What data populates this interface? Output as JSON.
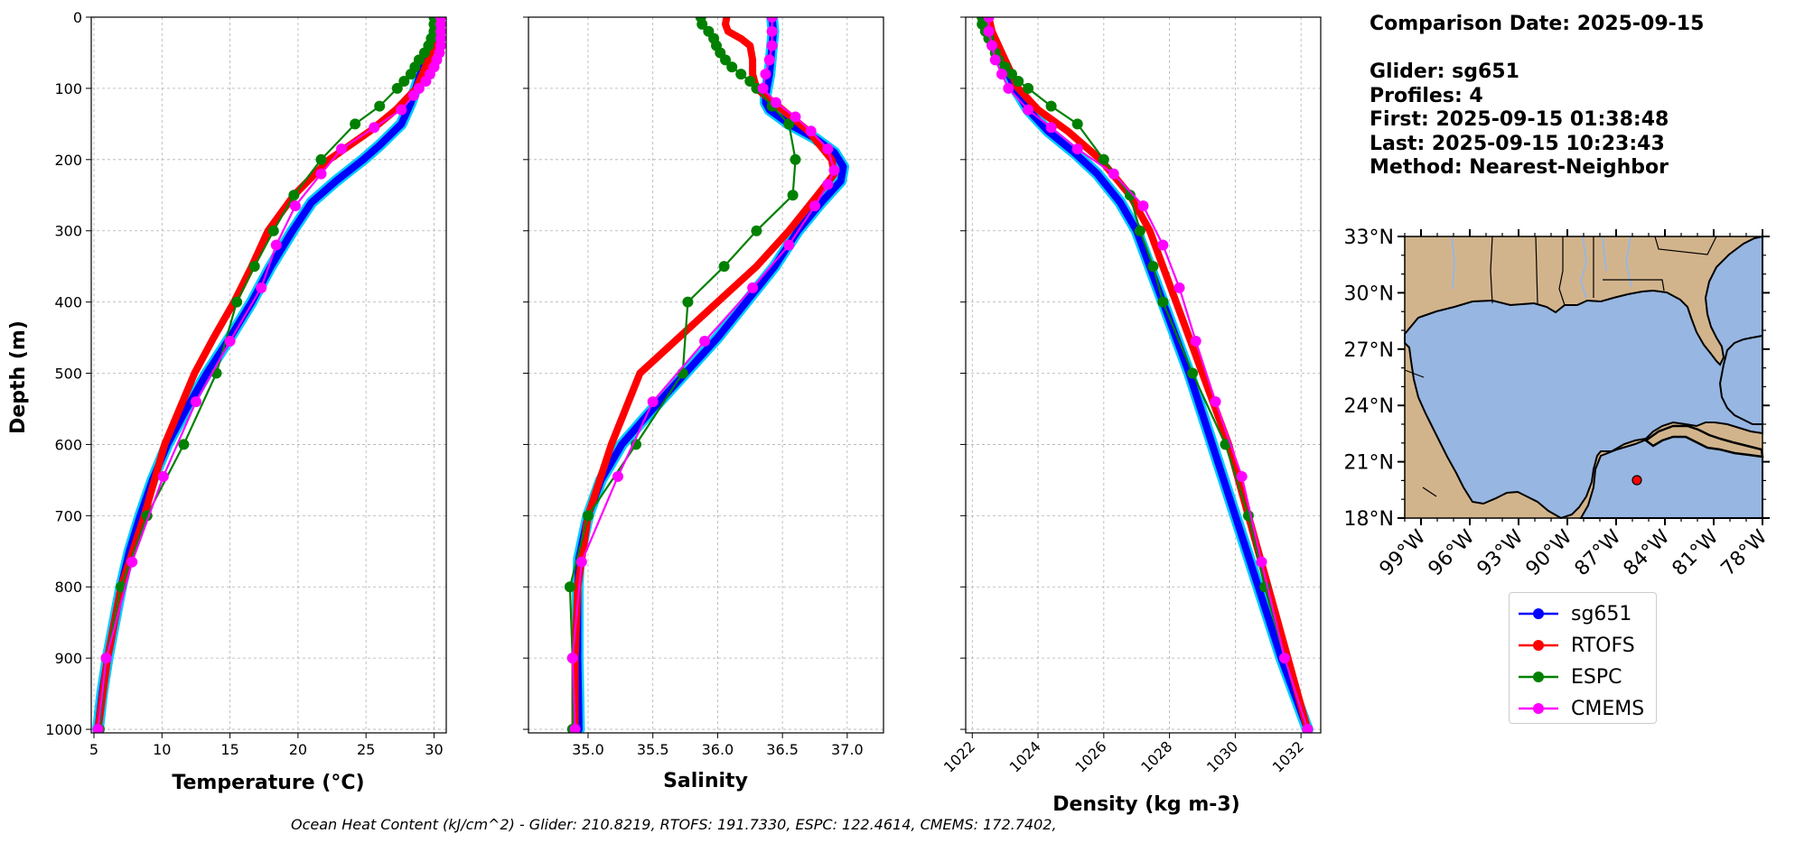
{
  "info": {
    "comparison_date": "Comparison Date: 2025-09-15",
    "glider": "Glider: sg651",
    "profiles": "Profiles: 4",
    "first": "First: 2025-09-15 01:38:48",
    "last": "Last: 2025-09-15 10:23:43",
    "method": "Method: Nearest-Neighbor"
  },
  "footer": "Ocean Heat Content (kJ/cm^2) - Glider: 210.8219,  RTOFS: 191.7330,  ESPC: 122.4614,  CMEMS: 172.7402,",
  "colors": {
    "sg651": "#0000ff",
    "sg651_halo": "#00ccff",
    "RTOFS": "#ff0000",
    "ESPC": "#008000",
    "CMEMS": "#ff00ff",
    "land": "#d2b48c",
    "ocean": "#97b6e1",
    "grid": "#b0b0b0"
  },
  "legend": [
    {
      "name": "sg651",
      "color": "#0000ff"
    },
    {
      "name": "RTOFS",
      "color": "#ff0000"
    },
    {
      "name": "ESPC",
      "color": "#008000"
    },
    {
      "name": "CMEMS",
      "color": "#ff00ff"
    }
  ],
  "chart_data": [
    {
      "type": "line",
      "xlabel": "Temperature ($^{o}C$)",
      "xlabel_display": "Temperature (°C)",
      "ylabel": "Depth (m)",
      "ylim": [
        1005,
        0
      ],
      "xlim": [
        4.8,
        30.9
      ],
      "xticks": [
        5,
        10,
        15,
        20,
        25,
        30
      ],
      "yticks": [
        0,
        100,
        200,
        300,
        400,
        500,
        600,
        700,
        800,
        900,
        1000
      ],
      "grid": true,
      "series": [
        {
          "name": "sg651",
          "line": "thick",
          "depth": [
            0,
            20,
            50,
            80,
            120,
            150,
            180,
            200,
            230,
            260,
            300,
            350,
            400,
            450,
            500,
            550,
            600,
            650,
            700,
            750,
            800,
            850,
            900,
            950,
            1000
          ],
          "values": [
            30.2,
            30.1,
            29.6,
            29.0,
            28.3,
            27.6,
            26.0,
            24.8,
            22.8,
            21.0,
            19.6,
            18.0,
            16.6,
            15.0,
            13.3,
            11.8,
            10.4,
            9.3,
            8.4,
            7.6,
            7.0,
            6.5,
            6.0,
            5.6,
            5.3
          ]
        },
        {
          "name": "RTOFS",
          "line": "thick",
          "depth": [
            0,
            30,
            60,
            100,
            130,
            160,
            200,
            250,
            300,
            350,
            400,
            450,
            500,
            600,
            700,
            800,
            900,
            1000
          ],
          "values": [
            30.3,
            30.1,
            29.6,
            28.7,
            27.2,
            25.3,
            22.3,
            19.7,
            17.8,
            16.6,
            15.3,
            13.8,
            12.4,
            10.2,
            8.7,
            7.0,
            6.0,
            5.3
          ]
        },
        {
          "name": "ESPC",
          "line": "thin",
          "markers": true,
          "depth": [
            0,
            10,
            20,
            30,
            40,
            50,
            60,
            70,
            80,
            90,
            100,
            125,
            150,
            200,
            250,
            300,
            350,
            400,
            500,
            600,
            700,
            800,
            900,
            1000
          ],
          "values": [
            30.0,
            30.0,
            30.0,
            29.8,
            29.6,
            29.3,
            28.9,
            28.6,
            28.3,
            27.8,
            27.3,
            26.0,
            24.2,
            21.7,
            19.7,
            18.2,
            16.8,
            15.5,
            14.0,
            11.6,
            8.9,
            7.0,
            5.9,
            5.4
          ]
        },
        {
          "name": "CMEMS",
          "line": "thin",
          "markers": true,
          "depth": [
            0,
            10,
            20,
            30,
            40,
            50,
            60,
            70,
            80,
            90,
            100,
            110,
            130,
            155,
            185,
            220,
            265,
            320,
            380,
            455,
            540,
            645,
            765,
            900,
            1000
          ],
          "values": [
            30.5,
            30.5,
            30.5,
            30.5,
            30.5,
            30.4,
            30.2,
            30.0,
            29.7,
            29.4,
            28.9,
            28.5,
            27.6,
            25.6,
            23.2,
            21.7,
            19.8,
            18.4,
            17.3,
            15.0,
            12.5,
            10.1,
            7.8,
            5.9,
            5.3
          ]
        }
      ]
    },
    {
      "type": "line",
      "xlabel": "Salinity",
      "ylim": [
        1005,
        0
      ],
      "xlim": [
        34.54,
        37.28
      ],
      "xticks": [
        35.0,
        35.5,
        36.0,
        36.5,
        37.0
      ],
      "grid": true,
      "series": [
        {
          "name": "sg651",
          "line": "thick",
          "depth": [
            0,
            20,
            40,
            60,
            80,
            100,
            110,
            120,
            130,
            150,
            170,
            190,
            210,
            230,
            260,
            300,
            350,
            400,
            450,
            500,
            550,
            600,
            650,
            700,
            760,
            800,
            900,
            1000
          ],
          "values": [
            36.42,
            36.43,
            36.42,
            36.41,
            36.4,
            36.38,
            36.37,
            36.37,
            36.4,
            36.55,
            36.75,
            36.9,
            36.97,
            36.95,
            36.8,
            36.62,
            36.44,
            36.22,
            36.0,
            35.75,
            35.5,
            35.26,
            35.1,
            35.0,
            34.93,
            34.92,
            34.92,
            34.93
          ]
        },
        {
          "name": "RTOFS",
          "line": "thick",
          "depth": [
            0,
            10,
            20,
            30,
            40,
            60,
            80,
            100,
            130,
            160,
            200,
            220,
            250,
            300,
            350,
            400,
            450,
            500,
            600,
            700,
            800,
            900,
            1000
          ],
          "values": [
            36.07,
            36.06,
            36.08,
            36.18,
            36.25,
            36.27,
            36.27,
            36.3,
            36.5,
            36.7,
            36.88,
            36.9,
            36.77,
            36.55,
            36.3,
            36.0,
            35.7,
            35.4,
            35.18,
            35.0,
            34.92,
            34.9,
            34.9
          ]
        },
        {
          "name": "ESPC",
          "line": "thin",
          "markers": true,
          "depth": [
            0,
            10,
            20,
            30,
            40,
            50,
            60,
            70,
            80,
            90,
            100,
            125,
            150,
            200,
            250,
            300,
            350,
            400,
            500,
            600,
            700,
            800,
            900,
            1000
          ],
          "values": [
            35.87,
            35.88,
            35.93,
            35.97,
            35.99,
            36.02,
            36.06,
            36.11,
            36.18,
            36.25,
            36.3,
            36.42,
            36.55,
            36.6,
            36.58,
            36.3,
            36.05,
            35.77,
            35.73,
            35.37,
            35.0,
            34.86,
            34.88,
            34.88
          ]
        },
        {
          "name": "CMEMS",
          "line": "thin",
          "markers": true,
          "depth": [
            0,
            20,
            40,
            60,
            80,
            100,
            120,
            140,
            160,
            185,
            215,
            235,
            265,
            320,
            380,
            455,
            540,
            645,
            765,
            900,
            1000
          ],
          "values": [
            36.42,
            36.42,
            36.42,
            36.4,
            36.37,
            36.35,
            36.45,
            36.6,
            36.72,
            36.85,
            36.9,
            36.85,
            36.75,
            36.55,
            36.27,
            35.9,
            35.5,
            35.23,
            34.95,
            34.88,
            34.9
          ]
        }
      ]
    },
    {
      "type": "line",
      "xlabel": "Density (kg m-3)",
      "ylim": [
        1005,
        0
      ],
      "xlim": [
        1021.8,
        1032.6
      ],
      "xticks": [
        1022,
        1024,
        1026,
        1028,
        1030,
        1032
      ],
      "grid": true,
      "series": [
        {
          "name": "sg651",
          "line": "thick",
          "depth": [
            0,
            20,
            50,
            80,
            100,
            130,
            160,
            190,
            220,
            260,
            300,
            400,
            500,
            600,
            700,
            800,
            900,
            1000
          ],
          "values": [
            1022.4,
            1022.5,
            1022.8,
            1023.1,
            1023.3,
            1023.7,
            1024.3,
            1025.1,
            1025.8,
            1026.5,
            1027.0,
            1027.8,
            1028.6,
            1029.3,
            1030.0,
            1030.7,
            1031.4,
            1032.2
          ]
        },
        {
          "name": "RTOFS",
          "line": "thick",
          "depth": [
            0,
            20,
            50,
            80,
            100,
            130,
            160,
            200,
            250,
            300,
            350,
            400,
            500,
            600,
            700,
            800,
            900,
            1000
          ],
          "values": [
            1022.5,
            1022.6,
            1022.9,
            1023.2,
            1023.4,
            1024.0,
            1024.9,
            1025.9,
            1026.8,
            1027.4,
            1027.8,
            1028.2,
            1029.0,
            1029.8,
            1030.4,
            1031.0,
            1031.6,
            1032.2
          ]
        },
        {
          "name": "ESPC",
          "line": "thin",
          "markers": true,
          "depth": [
            0,
            10,
            20,
            30,
            40,
            50,
            60,
            70,
            80,
            90,
            100,
            125,
            150,
            200,
            250,
            300,
            350,
            400,
            500,
            600,
            700,
            800,
            900,
            1000
          ],
          "values": [
            1022.3,
            1022.3,
            1022.4,
            1022.5,
            1022.6,
            1022.7,
            1022.8,
            1023.0,
            1023.2,
            1023.4,
            1023.7,
            1024.4,
            1025.2,
            1026.0,
            1026.8,
            1027.1,
            1027.5,
            1027.8,
            1028.7,
            1029.7,
            1030.4,
            1030.9,
            1031.5,
            1032.2
          ]
        },
        {
          "name": "CMEMS",
          "line": "thin",
          "markers": true,
          "depth": [
            0,
            20,
            40,
            60,
            80,
            100,
            130,
            155,
            185,
            220,
            265,
            320,
            380,
            455,
            540,
            645,
            765,
            900,
            1000
          ],
          "values": [
            1022.5,
            1022.5,
            1022.6,
            1022.7,
            1022.9,
            1023.1,
            1023.7,
            1024.4,
            1025.2,
            1026.3,
            1027.2,
            1027.8,
            1028.3,
            1028.8,
            1029.4,
            1030.2,
            1030.8,
            1031.5,
            1032.2
          ]
        }
      ]
    },
    {
      "type": "map",
      "lon_range": [
        -100,
        -78
      ],
      "lat_range": [
        18,
        33
      ],
      "xticks": [
        "99°W",
        "96°W",
        "93°W",
        "90°W",
        "87°W",
        "84°W",
        "81°W",
        "78°W"
      ],
      "yticks": [
        "18°N",
        "21°N",
        "24°N",
        "27°N",
        "30°N",
        "33°N"
      ],
      "marker": {
        "lon": -85.6,
        "lat": 20.2,
        "color": "#ff0000"
      }
    }
  ]
}
